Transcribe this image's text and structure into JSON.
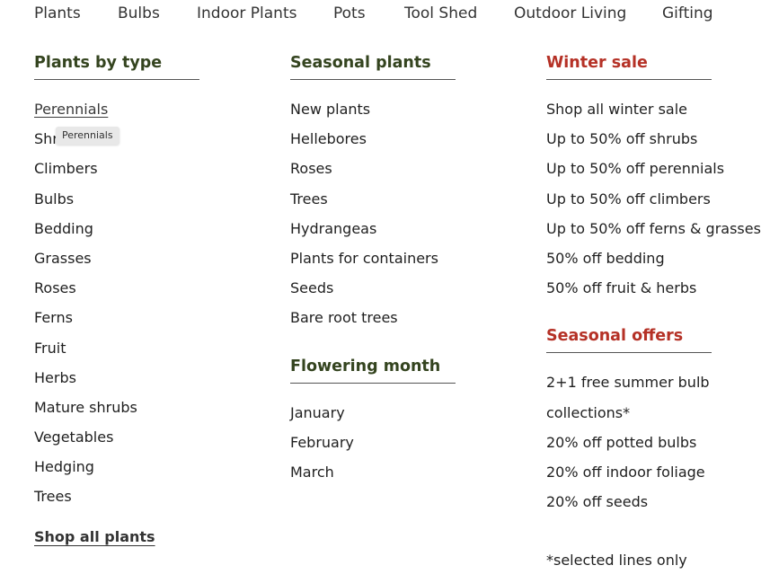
{
  "top_nav": [
    "Plants",
    "Bulbs",
    "Indoor Plants",
    "Pots",
    "Tool Shed",
    "Outdoor Living",
    "Gifting"
  ],
  "col1": {
    "heading": "Plants by type",
    "items": [
      "Perennials",
      "Shrubs",
      "Climbers",
      "Bulbs",
      "Bedding",
      "Grasses",
      "Roses",
      "Ferns",
      "Fruit",
      "Herbs",
      "Mature shrubs",
      "Vegetables",
      "Hedging",
      "Trees"
    ],
    "tooltip": "Perennials",
    "shop_all": "Shop all plants"
  },
  "col2": {
    "heading": "Seasonal plants",
    "items": [
      "New plants",
      "Hellebores",
      "Roses",
      "Trees",
      "Hydrangeas",
      "Plants for containers",
      "Seeds",
      "Bare root trees"
    ],
    "heading2": "Flowering month",
    "items2": [
      "January",
      "February",
      "March"
    ]
  },
  "col3": {
    "heading": "Winter sale",
    "items": [
      "Shop all winter sale",
      "Up to 50% off shrubs",
      "Up to 50% off perennials",
      "Up to 50% off climbers",
      "Up to 50% off ferns & grasses",
      "50% off bedding",
      "50% off fruit & herbs"
    ],
    "heading2": "Seasonal offers",
    "items2": [
      "2+1 free summer bulb collections*",
      "20% off potted bulbs",
      "20% off indoor foliage",
      "20% off seeds"
    ],
    "footnote": "*selected lines only"
  },
  "colors": {
    "green_heading": "#34441f",
    "red_heading": "#b53126"
  }
}
